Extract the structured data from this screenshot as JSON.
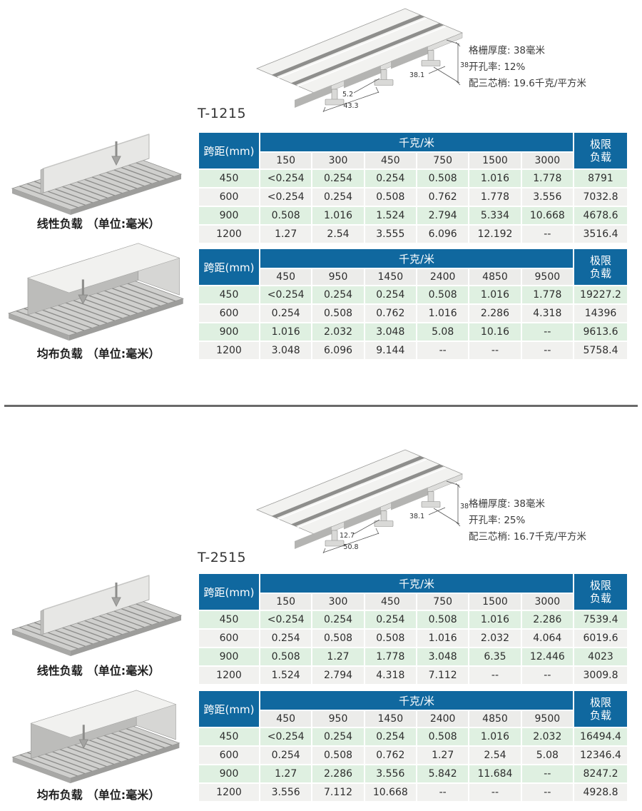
{
  "page_title": "格栅负载数据表",
  "colors": {
    "header_blue": "#10689f",
    "row_green": "#dff0e1",
    "row_gray": "#f1f1ef",
    "subheader_gray": "#ececea",
    "divider_gray": "#6a6a6a"
  },
  "sections": [
    {
      "model": "T-1215",
      "specs": {
        "thickness": "格栅厚度: 38毫米",
        "open_rate": "开孔率: 12%",
        "weight": "配三芯梢: 19.6千克/平方米"
      },
      "profile_dims": {
        "web_thickness": "5.2",
        "flange_spacing": "43.3",
        "rib_pitch": "38.1",
        "height": "38"
      },
      "load_illustrations": [
        {
          "label": "线性负载",
          "unit": "（单位:毫米）"
        },
        {
          "label": "均布负载",
          "unit": "（单位:毫米）"
        }
      ],
      "tables": [
        {
          "corner_header": "跨距(mm)",
          "group_header": "千克/米",
          "limit_header": [
            "极限",
            "负载"
          ],
          "load_columns": [
            "150",
            "300",
            "450",
            "750",
            "1500",
            "3000"
          ],
          "rows": [
            {
              "span": "450",
              "values": [
                "<0.254",
                "0.254",
                "0.254",
                "0.508",
                "1.016",
                "1.778"
              ],
              "limit": "8791"
            },
            {
              "span": "600",
              "values": [
                "<0.254",
                "0.254",
                "0.508",
                "0.762",
                "1.778",
                "3.556"
              ],
              "limit": "7032.8"
            },
            {
              "span": "900",
              "values": [
                "0.508",
                "1.016",
                "1.524",
                "2.794",
                "5.334",
                "10.668"
              ],
              "limit": "4678.6"
            },
            {
              "span": "1200",
              "values": [
                "1.27",
                "2.54",
                "3.555",
                "6.096",
                "12.192",
                "--"
              ],
              "limit": "3516.4"
            }
          ]
        },
        {
          "corner_header": "跨距(mm)",
          "group_header": "千克/米",
          "limit_header": [
            "极限",
            "负载"
          ],
          "load_columns": [
            "450",
            "950",
            "1450",
            "2400",
            "4850",
            "9500"
          ],
          "rows": [
            {
              "span": "450",
              "values": [
                "<0.254",
                "0.254",
                "0.254",
                "0.508",
                "1.016",
                "1.778"
              ],
              "limit": "19227.2"
            },
            {
              "span": "600",
              "values": [
                "0.254",
                "0.508",
                "0.762",
                "1.016",
                "2.286",
                "4.318"
              ],
              "limit": "14396"
            },
            {
              "span": "900",
              "values": [
                "1.016",
                "2.032",
                "3.048",
                "5.08",
                "10.16",
                "--"
              ],
              "limit": "9613.6"
            },
            {
              "span": "1200",
              "values": [
                "3.048",
                "6.096",
                "9.144",
                "--",
                "--",
                "--"
              ],
              "limit": "5758.4"
            }
          ]
        }
      ]
    },
    {
      "model": "T-2515",
      "specs": {
        "thickness": "格栅厚度: 38毫米",
        "open_rate": "开孔率: 25%",
        "weight": "配三芯梢: 16.7千克/平方米"
      },
      "profile_dims": {
        "web_thickness": "12.7",
        "flange_spacing": "50.8",
        "rib_pitch": "38.1",
        "height": "38"
      },
      "load_illustrations": [
        {
          "label": "线性负载",
          "unit": "（单位:毫米）"
        },
        {
          "label": "均布负载",
          "unit": "（单位:毫米）"
        }
      ],
      "tables": [
        {
          "corner_header": "跨距(mm)",
          "group_header": "千克/米",
          "limit_header": [
            "极限",
            "负载"
          ],
          "load_columns": [
            "150",
            "300",
            "450",
            "750",
            "1500",
            "3000"
          ],
          "rows": [
            {
              "span": "450",
              "values": [
                "<0.254",
                "0.254",
                "0.254",
                "0.508",
                "1.016",
                "2.286"
              ],
              "limit": "7539.4"
            },
            {
              "span": "600",
              "values": [
                "0.254",
                "0.508",
                "0.508",
                "1.016",
                "2.032",
                "4.064"
              ],
              "limit": "6019.6"
            },
            {
              "span": "900",
              "values": [
                "0.508",
                "1.27",
                "1.778",
                "3.048",
                "6.35",
                "12.446"
              ],
              "limit": "4023"
            },
            {
              "span": "1200",
              "values": [
                "1.524",
                "2.794",
                "4.318",
                "7.112",
                "--",
                "--"
              ],
              "limit": "3009.8"
            }
          ]
        },
        {
          "corner_header": "跨距(mm)",
          "group_header": "千克/米",
          "limit_header": [
            "极限",
            "负载"
          ],
          "load_columns": [
            "450",
            "950",
            "1450",
            "2400",
            "4850",
            "9500"
          ],
          "rows": [
            {
              "span": "450",
              "values": [
                "<0.254",
                "0.254",
                "0.254",
                "0.508",
                "1.016",
                "2.032"
              ],
              "limit": "16494.4"
            },
            {
              "span": "600",
              "values": [
                "0.254",
                "0.508",
                "0.762",
                "1.27",
                "2.54",
                "5.08"
              ],
              "limit": "12346.4"
            },
            {
              "span": "900",
              "values": [
                "1.27",
                "2.286",
                "3.556",
                "5.842",
                "11.684",
                "--"
              ],
              "limit": "8247.2"
            },
            {
              "span": "1200",
              "values": [
                "3.556",
                "7.112",
                "10.668",
                "--",
                "--",
                "--"
              ],
              "limit": "4928.8"
            }
          ]
        }
      ]
    }
  ]
}
